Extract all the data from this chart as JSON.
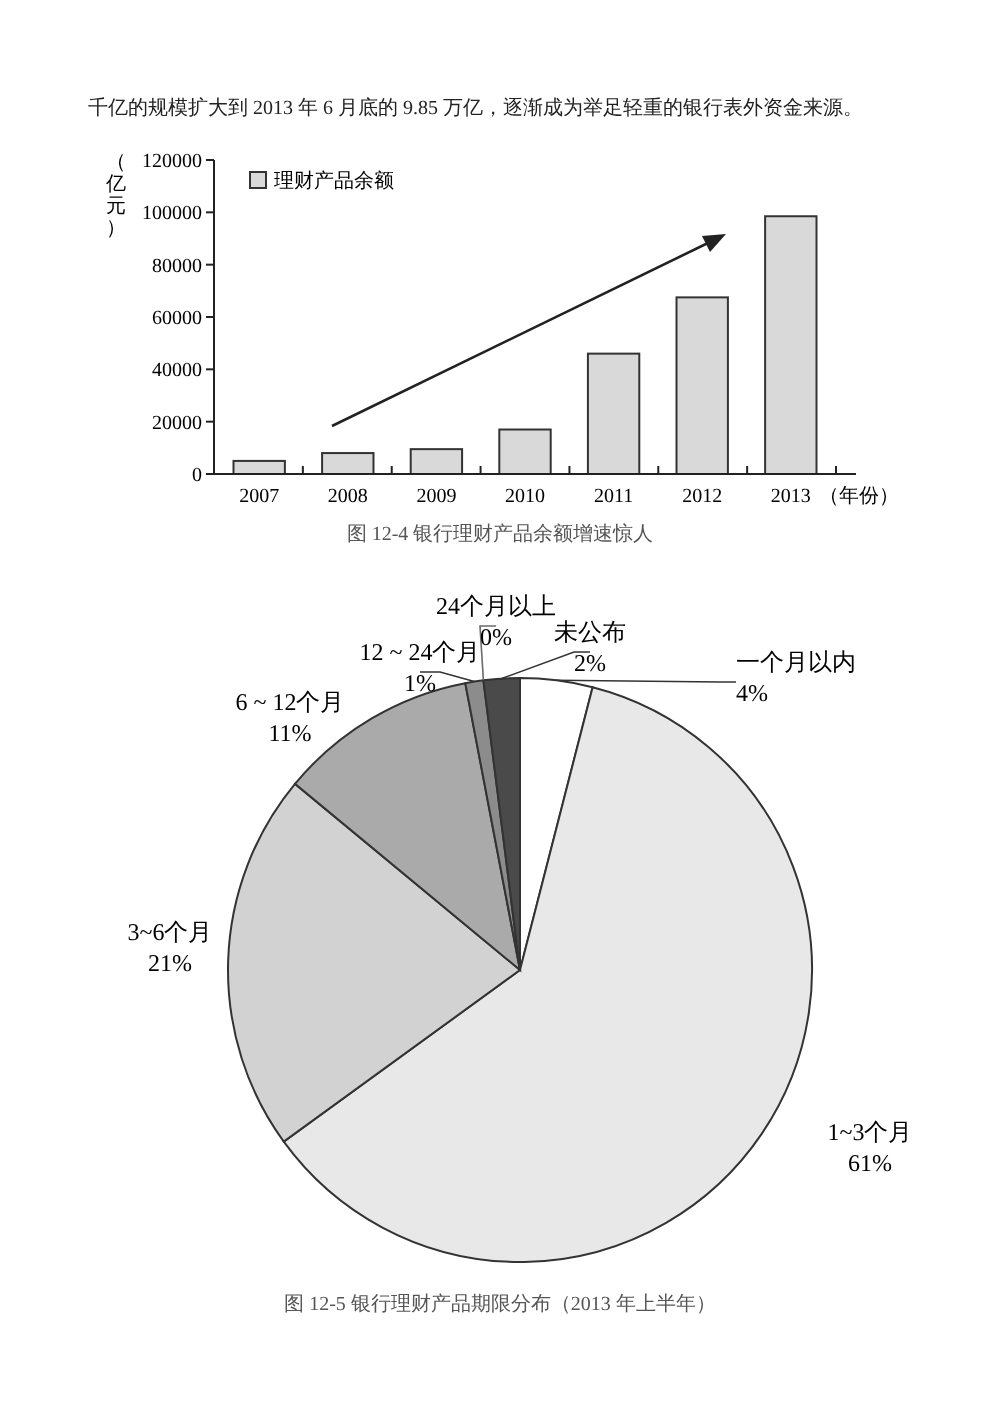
{
  "chart_data": [
    {
      "type": "bar",
      "title": "图 12-4 银行理财产品余额增速惊人",
      "annotations": [
        "千亿的规模扩大到 2013 年 6 月底的 9.85 万亿，逐渐成为举足轻重的银行表外资金来源。"
      ],
      "categories": [
        "2007",
        "2008",
        "2009",
        "2010",
        "2011",
        "2012",
        "2013"
      ],
      "series": [
        {
          "name": "理财产品余额",
          "color": "#d9d9d9",
          "values": [
            5000,
            8000,
            9500,
            17000,
            46000,
            67500,
            98500
          ]
        }
      ],
      "ylim": [
        0,
        120000
      ],
      "yticks": [
        0,
        20000,
        40000,
        60000,
        80000,
        100000,
        120000
      ],
      "ylabel": "（亿元）",
      "xlabel": "（年份）",
      "legend": "top left"
    },
    {
      "type": "pie",
      "title": "图 12-5 银行理财产品期限分布（2013 年上半年）",
      "categories": [
        "一个月以内",
        "1~3个月",
        "3~6个月",
        "6 ~ 12个月",
        "12 ~ 24个月",
        "24个月以上",
        "未公布"
      ],
      "values": [
        4,
        61,
        21,
        11,
        1,
        0,
        2
      ],
      "colors": [
        "#ffffff",
        "#e8e8e8",
        "#d2d2d2",
        "#aaaaaa",
        "#8c8c8c",
        "#6a6a6a",
        "#4a4a4a"
      ],
      "value_labels": [
        "4%",
        "61%",
        "21%",
        "11%",
        "1%",
        "0%",
        "2%"
      ]
    }
  ]
}
